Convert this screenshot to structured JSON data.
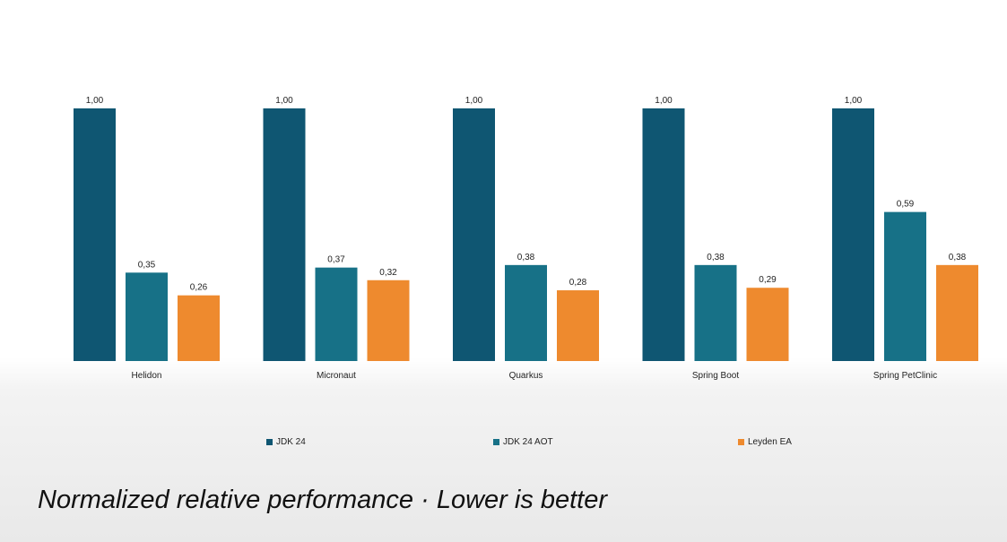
{
  "chart_data": {
    "type": "bar",
    "title": "",
    "xlabel": "",
    "ylabel": "",
    "ylim": [
      0,
      1.0
    ],
    "categories": [
      "Helidon",
      "Micronaut",
      "Quarkus",
      "Spring Boot",
      "Spring PetClinic"
    ],
    "series": [
      {
        "name": "JDK 24",
        "values": [
          1.0,
          1.0,
          1.0,
          1.0,
          1.0
        ],
        "labels": [
          "1,00",
          "1,00",
          "1,00",
          "1,00",
          "1,00"
        ],
        "color": "#0f5672"
      },
      {
        "name": "JDK 24 AOT",
        "values": [
          0.35,
          0.37,
          0.38,
          0.38,
          0.59
        ],
        "labels": [
          "0,35",
          "0,37",
          "0,38",
          "0,38",
          "0,59"
        ],
        "color": "#177187"
      },
      {
        "name": "Leyden EA",
        "values": [
          0.26,
          0.32,
          0.28,
          0.29,
          0.38
        ],
        "labels": [
          "0,26",
          "0,32",
          "0,28",
          "0,29",
          "0,38"
        ],
        "color": "#ee8a2e"
      }
    ],
    "legend": {
      "position": "bottom"
    }
  },
  "caption": "Normalized relative performance · Lower is better"
}
